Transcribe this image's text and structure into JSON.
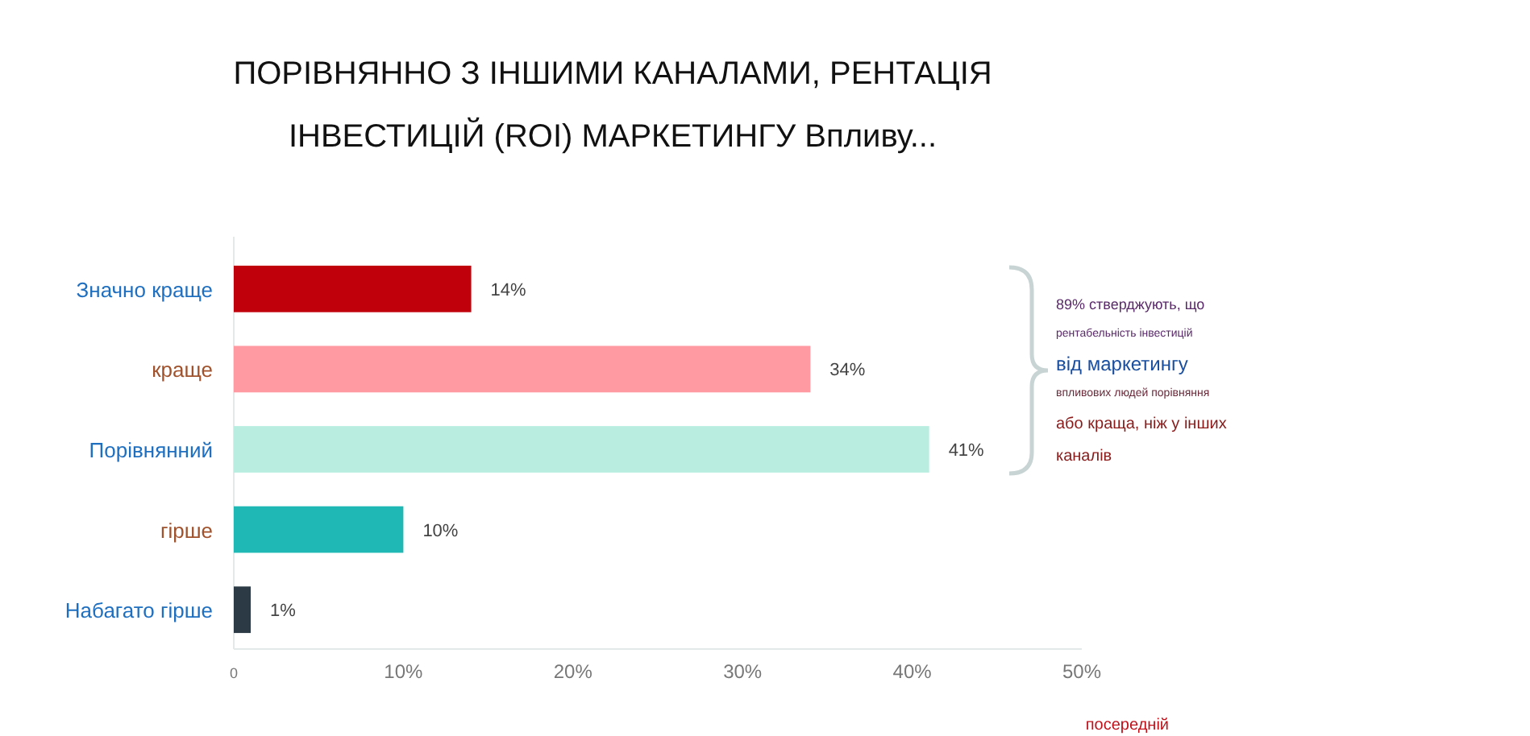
{
  "chart_data": {
    "type": "bar",
    "orientation": "horizontal",
    "title": "ПОРІВНЯННО З ІНШИМИ КАНАЛАМИ, РЕНТАЦІЯ ІНВЕСТИЦІЙ (ROI) МАРКЕТИНГУ Впливу...",
    "categories": [
      "Значно краще",
      "краще",
      "Порівнянний",
      "гірше",
      "Набагато гірше"
    ],
    "values": [
      14,
      34,
      41,
      10,
      1
    ],
    "colors": [
      "#c0000a",
      "#ff9aa2",
      "#b8ede0",
      "#20b8b4",
      "#2b3a44"
    ],
    "value_labels": [
      "14%",
      "34%",
      "41%",
      "10%",
      "1%"
    ],
    "xlim": [
      0,
      50
    ],
    "xticks": [
      0,
      {
        "value": 10,
        "label": "10%"
      },
      {
        "value": 20,
        "label": "20%"
      },
      {
        "value": 30,
        "label": "30%"
      },
      {
        "value": 40,
        "label": "40%"
      },
      {
        "value": 50,
        "label": "50%"
      }
    ],
    "annotations": [
      "89% стверджують, що",
      "рентабельність інвестицій",
      "від маркетингу",
      "впливових людей порівняння",
      "або краща, ніж у інших",
      "каналів",
      "посередній"
    ]
  }
}
